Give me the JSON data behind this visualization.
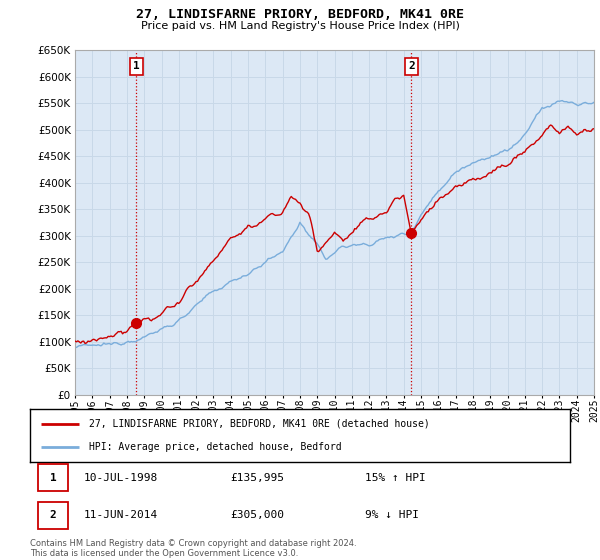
{
  "title": "27, LINDISFARNE PRIORY, BEDFORD, MK41 0RE",
  "subtitle": "Price paid vs. HM Land Registry's House Price Index (HPI)",
  "legend_line1": "27, LINDISFARNE PRIORY, BEDFORD, MK41 0RE (detached house)",
  "legend_line2": "HPI: Average price, detached house, Bedford",
  "annotation1_label": "1",
  "annotation1_date": "10-JUL-1998",
  "annotation1_price": "£135,995",
  "annotation1_hpi": "15% ↑ HPI",
  "annotation2_label": "2",
  "annotation2_date": "11-JUN-2014",
  "annotation2_price": "£305,000",
  "annotation2_hpi": "9% ↓ HPI",
  "footnote": "Contains HM Land Registry data © Crown copyright and database right 2024.\nThis data is licensed under the Open Government Licence v3.0.",
  "xmin": 1995,
  "xmax": 2025,
  "ymin": 0,
  "ymax": 650000,
  "ytick_step": 50000,
  "purchase1_year": 1998.54,
  "purchase1_price": 135995,
  "purchase2_year": 2014.44,
  "purchase2_price": 305000,
  "line_color_red": "#cc0000",
  "line_color_blue": "#7aaddb",
  "vline_color": "#cc0000",
  "grid_color": "#c8d8e8",
  "background_color": "#ffffff",
  "plot_bg_color": "#dce8f5"
}
